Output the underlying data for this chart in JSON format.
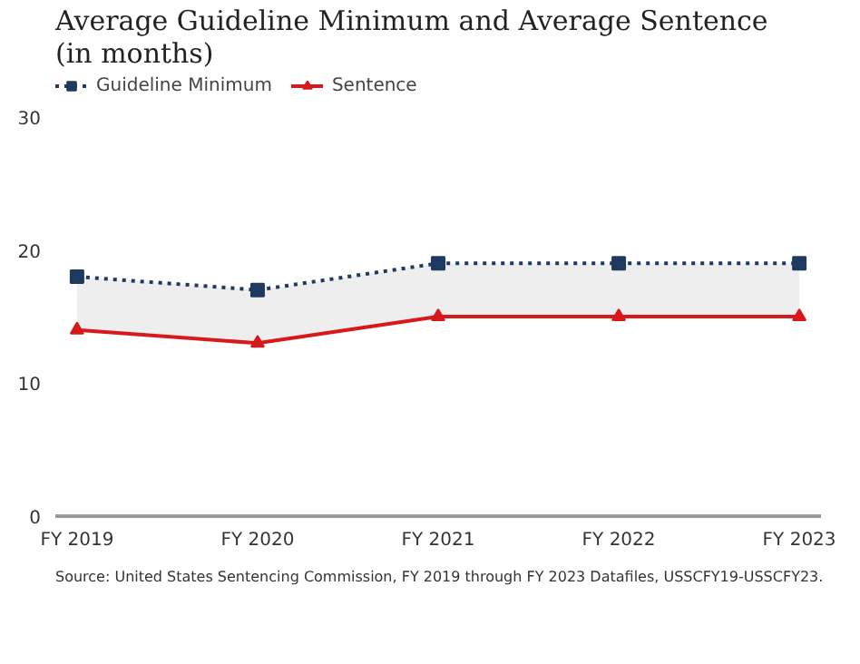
{
  "chart_data": {
    "type": "line",
    "title": "Average Guideline Minimum and Average Sentence (in months)",
    "categories": [
      "FY 2019",
      "FY 2020",
      "FY 2021",
      "FY 2022",
      "FY 2023"
    ],
    "series": [
      {
        "name": "Guideline Minimum",
        "color": "#1f3a5f",
        "values": [
          18,
          17,
          19,
          19,
          19
        ],
        "marker": "square",
        "line_style": "dotted",
        "lower": [
          14,
          13,
          15,
          15,
          15
        ],
        "upper": [
          18,
          17,
          19,
          19,
          19
        ]
      },
      {
        "name": "Sentence",
        "color": "#d7191c",
        "values": [
          14,
          13,
          15,
          15,
          15
        ],
        "marker": "triangle",
        "line_style": "solid"
      }
    ],
    "ylim": [
      0,
      30
    ],
    "yticks": [
      0,
      10,
      20,
      30
    ],
    "grid": false,
    "legend": "top left",
    "annotations": [
      "Source: United States Sentencing Commission, FY 2019 through FY 2023 Datafiles, USSCFY19-USSCFY23."
    ]
  }
}
